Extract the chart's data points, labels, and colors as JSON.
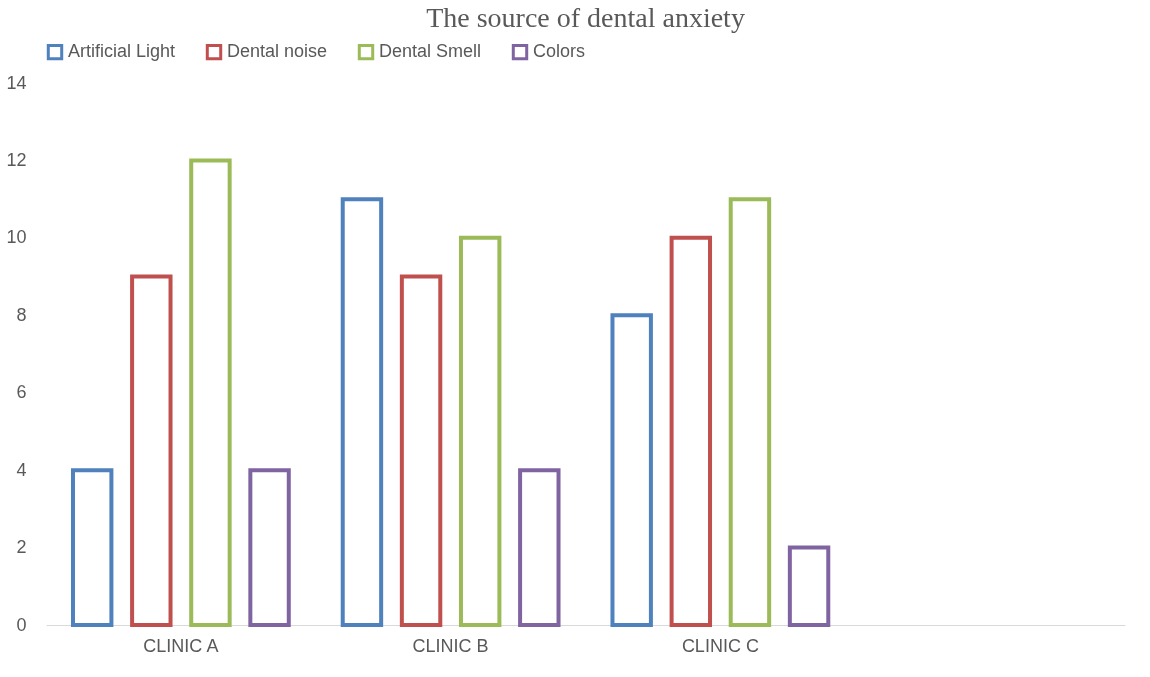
{
  "chart_data": {
    "type": "bar",
    "title": "The source of dental anxiety",
    "categories": [
      "CLINIC A",
      "CLINIC B",
      "CLINIC C",
      null
    ],
    "series": [
      {
        "name": "Artificial Light",
        "color": "#4f81bd",
        "values": [
          4,
          11,
          8,
          null
        ]
      },
      {
        "name": "Dental noise",
        "color": "#c0504d",
        "values": [
          9,
          9,
          10,
          null
        ]
      },
      {
        "name": "Dental Smell",
        "color": "#9bbb59",
        "values": [
          12,
          10,
          11,
          null
        ]
      },
      {
        "name": "Colors",
        "color": "#8064a2",
        "values": [
          4,
          4,
          2,
          null
        ]
      }
    ],
    "ylim": [
      0,
      14
    ],
    "yticks": [
      0,
      2,
      4,
      6,
      8,
      10,
      12,
      14
    ],
    "grid": false,
    "legend": "top"
  }
}
